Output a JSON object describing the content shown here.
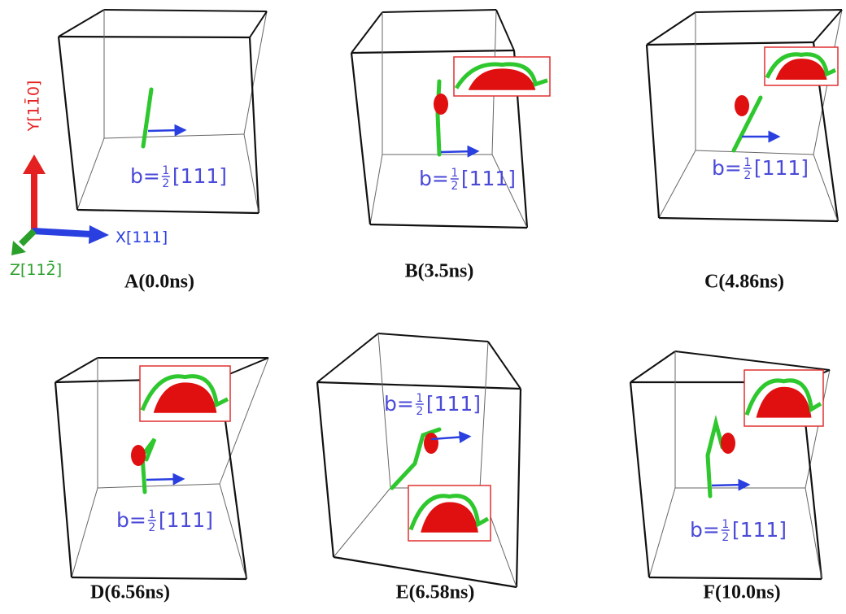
{
  "axes": {
    "y": "Y[11̄0]",
    "x": "X[111]",
    "z": "Z[112̄]"
  },
  "panels": [
    {
      "label": "A(0.0ns)",
      "burgers": {
        "prefix": "b=",
        "numerator": "1",
        "denominator": "2",
        "direction": "[111]"
      }
    },
    {
      "label": "B(3.5ns)",
      "burgers": {
        "prefix": "b=",
        "numerator": "1",
        "denominator": "2",
        "direction": "[111]"
      }
    },
    {
      "label": "C(4.86ns)",
      "burgers": {
        "prefix": "b=",
        "numerator": "1",
        "denominator": "2",
        "direction": "[111]"
      }
    },
    {
      "label": "D(6.56ns)",
      "burgers": {
        "prefix": "b=",
        "numerator": "1",
        "denominator": "2",
        "direction": "[111]"
      }
    },
    {
      "label": "E(6.58ns)",
      "burgers": {
        "prefix": "b=",
        "numerator": "1",
        "denominator": "2",
        "direction": "[111]"
      }
    },
    {
      "label": "F(10.0ns)",
      "burgers": {
        "prefix": "b=",
        "numerator": "1",
        "denominator": "2",
        "direction": "[111]"
      }
    }
  ]
}
